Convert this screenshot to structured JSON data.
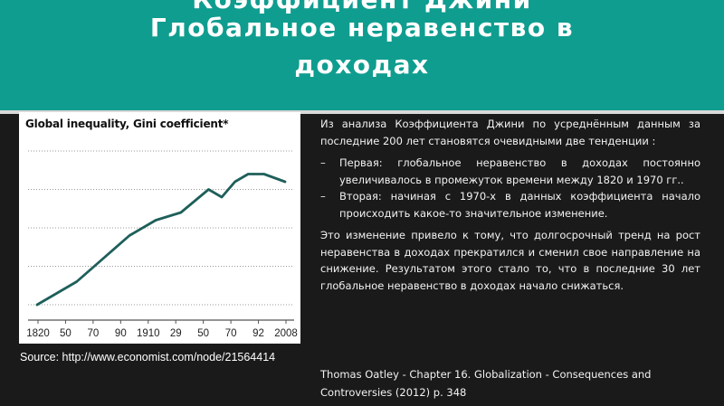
{
  "header": {
    "title_cut": "Коэффициент Джини",
    "title_line1": "Глобальное неравенство в",
    "title_line2": "доходах"
  },
  "figure": {
    "source": "Source: http://www.economist.com/node/21564414"
  },
  "chart_data": {
    "type": "line",
    "title": "Global inequality, Gini coefficient*",
    "x_tick_labels": [
      "1820",
      "50",
      "70",
      "90",
      "1910",
      "29",
      "50",
      "70",
      "92",
      "2008"
    ],
    "x": [
      1820,
      1850,
      1870,
      1890,
      1910,
      1929,
      1950,
      1960,
      1970,
      1980,
      1992,
      2008
    ],
    "series": [
      {
        "values": [
          0.5,
          0.53,
          0.56,
          0.59,
          0.61,
          0.62,
          0.65,
          0.64,
          0.66,
          0.67,
          0.67,
          0.66
        ]
      }
    ],
    "ylim": [
      0.48,
      0.72
    ],
    "y_gridlines": [
      0.5,
      0.55,
      0.6,
      0.65,
      0.7
    ],
    "grid": true,
    "line_color": "#1e5f5a"
  },
  "content": {
    "intro": "Из анализа Коэффициента Джини по усреднённым данным за последние 200 лет становятся очевидными две тенденции :",
    "bullets": [
      "Первая: глобальное неравенство в доходах постоянно увеличивалось в промежуток времени между 1820 и 1970 гг..",
      "Вторая: начиная с 1970-х в данных коэффициента начало происходить какое-то значительное изменение."
    ],
    "bullet_marker": "–",
    "conclusion": "Это изменение привело к тому, что долгосрочный тренд на рост неравенства в доходах прекратился и сменил свое направление на снижение. Результатом этого стало то, что в последние 30 лет глобальное неравенство в доходах начало снижаться."
  },
  "citation": "Thomas Oatley - Chapter 16. Globalization - Consequences and Controversies (2012) p. 348",
  "colors": {
    "header_bg": "#0f9d8f",
    "page_bg": "#1a1a1a",
    "text": "#f2f2f2"
  }
}
